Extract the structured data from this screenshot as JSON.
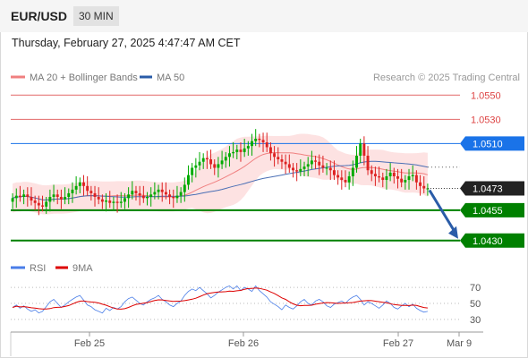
{
  "header": {
    "symbol": "EURUSD",
    "symbol_display": "EUR/USD",
    "timeframe": "30 MIN"
  },
  "datetime": "Thursday, February 27, 2025 4:47:47 AM CET",
  "colors": {
    "candle_up": "#00aa00",
    "candle_down": "#dd2222",
    "ma20": "#f08080",
    "band_fill": "#fcd6d6",
    "ma50": "#4a6fb5",
    "support": "#008000",
    "resistance": "#dd4444",
    "pivot": "#1a73e8",
    "arrow": "#2a5ca8",
    "rsi": "#4a7ee8",
    "rsi_ma": "#dd0000"
  },
  "chart_data": [
    {
      "type": "candlestick",
      "legend": [
        {
          "name": "MA 20 + Bollinger Bands",
          "color": "#f08080"
        },
        {
          "name": "MA 50",
          "color": "#2a5ca8"
        }
      ],
      "copyright": "Research © 2025 Trading Central",
      "ylim": [
        1.0418,
        1.0562
      ],
      "x_ticks": [
        "Feb 25",
        "Feb 26",
        "Feb 27",
        "Mar 9"
      ],
      "last_price": "1.0473",
      "levels": [
        {
          "label": "1.0550",
          "value": 1.055,
          "kind": "resistance",
          "style": "line"
        },
        {
          "label": "1.0530",
          "value": 1.053,
          "kind": "resistance",
          "style": "line"
        },
        {
          "label": "1.0510",
          "value": 1.051,
          "kind": "pivot",
          "style": "box"
        },
        {
          "label": "1.0455",
          "value": 1.0455,
          "kind": "support",
          "style": "box"
        },
        {
          "label": "1.0430",
          "value": 1.043,
          "kind": "support",
          "style": "box"
        }
      ],
      "forecast_arrow": {
        "from": 1.0473,
        "to": 1.043
      },
      "closes": [
        1.0465,
        1.0467,
        1.0466,
        1.0468,
        1.0466,
        1.0463,
        1.0461,
        1.0459,
        1.0458,
        1.0462,
        1.0466,
        1.0468,
        1.0466,
        1.0464,
        1.0466,
        1.0469,
        1.0472,
        1.0475,
        1.0478,
        1.0475,
        1.0471,
        1.0469,
        1.0466,
        1.0464,
        1.0462,
        1.0463,
        1.0461,
        1.0462,
        1.0461,
        1.0462,
        1.0465,
        1.0468,
        1.0471,
        1.0469,
        1.0467,
        1.0465,
        1.0466,
        1.0468,
        1.047,
        1.0472,
        1.047,
        1.0468,
        1.0466,
        1.0465,
        1.0467,
        1.047,
        1.0476,
        1.0484,
        1.049,
        1.0492,
        1.0495,
        1.0498,
        1.0497,
        1.0493,
        1.049,
        1.0493,
        1.0496,
        1.0499,
        1.0502,
        1.0503,
        1.0505,
        1.0503,
        1.0506,
        1.0508,
        1.0512,
        1.0514,
        1.0513,
        1.0511,
        1.0507,
        1.0502,
        1.0499,
        1.0497,
        1.0495,
        1.0493,
        1.049,
        1.0488,
        1.0487,
        1.0489,
        1.0491,
        1.0493,
        1.0496,
        1.0495,
        1.0492,
        1.049,
        1.049,
        1.0488,
        1.0484,
        1.0482,
        1.048,
        1.0478,
        1.0483,
        1.049,
        1.05,
        1.051,
        1.05,
        1.0488,
        1.0485,
        1.0483,
        1.0482,
        1.048,
        1.0483,
        1.0486,
        1.0483,
        1.0481,
        1.0478,
        1.048,
        1.0483,
        1.0484,
        1.0478,
        1.0475,
        1.0473,
        1.0473
      ]
    },
    {
      "type": "line",
      "legend": [
        {
          "name": "RSI",
          "color": "#4a7ee8"
        },
        {
          "name": "9MA",
          "color": "#dd0000"
        }
      ],
      "ylim": [
        22,
        78
      ],
      "y_ticks": [
        70,
        50,
        30
      ],
      "rsi": [
        45,
        48,
        44,
        47,
        43,
        40,
        42,
        38,
        40,
        46,
        52,
        55,
        50,
        45,
        48,
        52,
        55,
        58,
        60,
        54,
        48,
        46,
        42,
        40,
        38,
        44,
        41,
        45,
        43,
        46,
        52,
        56,
        58,
        54,
        50,
        48,
        52,
        55,
        57,
        60,
        55,
        52,
        48,
        46,
        50,
        53,
        60,
        65,
        68,
        66,
        70,
        66,
        62,
        57,
        60,
        64,
        67,
        70,
        72,
        68,
        72,
        66,
        70,
        68,
        65,
        72,
        66,
        62,
        58,
        52,
        49,
        46,
        42,
        48,
        45,
        43,
        47,
        52,
        55,
        50,
        48,
        53,
        55,
        52,
        47,
        45,
        49,
        51,
        53,
        50,
        55,
        58,
        60,
        55,
        48,
        52,
        50,
        47,
        44,
        48,
        53,
        50,
        45,
        43,
        47,
        50,
        46,
        49,
        44,
        41,
        39,
        40
      ]
    }
  ]
}
